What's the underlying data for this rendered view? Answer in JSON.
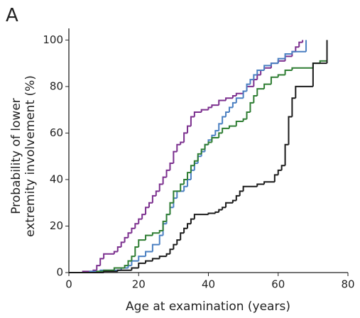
{
  "chart_data": {
    "type": "step",
    "panel_label": "A",
    "xlabel": "Age at examination (years)",
    "ylabel": [
      "Probability of lower",
      "extremity involvement (%)"
    ],
    "xlim": [
      0,
      80
    ],
    "ylim": [
      0,
      105
    ],
    "xticks": [
      0,
      20,
      40,
      60,
      80
    ],
    "yticks": [
      0,
      20,
      40,
      60,
      80,
      100
    ],
    "series": [
      {
        "color": "#7b2f8e",
        "x": [
          0,
          4,
          7,
          8,
          9,
          10,
          13,
          14,
          15,
          16,
          17,
          18,
          19,
          20,
          21,
          22,
          23,
          24,
          25,
          26,
          27,
          28,
          29,
          30,
          31,
          32,
          33,
          34,
          35,
          36,
          38,
          40,
          41,
          43,
          45,
          47,
          48,
          50,
          51,
          53,
          54,
          55,
          56,
          58,
          60,
          62,
          64,
          65,
          66,
          67
        ],
        "values": [
          0,
          0.5,
          1,
          3,
          6,
          8,
          9,
          11,
          13,
          15,
          17,
          19,
          21,
          23,
          25,
          28,
          30,
          33,
          35,
          38,
          41,
          44,
          47,
          52,
          55,
          56,
          60,
          63,
          67,
          69,
          70,
          71,
          72,
          74,
          75,
          76,
          77,
          78,
          80,
          83,
          85,
          87,
          88,
          90,
          91,
          93,
          95,
          97,
          99,
          100
        ]
      },
      {
        "color": "#4a7fc1",
        "x": [
          0,
          6,
          9,
          15,
          17,
          18,
          20,
          22,
          24,
          26,
          27,
          28,
          29,
          30,
          31,
          33,
          34,
          35,
          36,
          37,
          38,
          39,
          40,
          41,
          42,
          43,
          44,
          45,
          46,
          47,
          48,
          50,
          51,
          52,
          53,
          54,
          56,
          58,
          60,
          62,
          64,
          68
        ],
        "values": [
          0,
          0.5,
          1,
          2,
          3,
          5,
          7,
          9,
          12,
          16,
          21,
          25,
          28,
          32,
          35,
          37,
          40,
          44,
          47,
          50,
          52,
          55,
          57,
          59,
          61,
          64,
          67,
          69,
          71,
          73,
          75,
          78,
          81,
          83,
          85,
          87,
          89,
          90,
          92,
          94,
          95,
          100
        ]
      },
      {
        "color": "#2e7d32",
        "x": [
          0,
          8,
          10,
          13,
          16,
          17,
          18,
          19,
          20,
          22,
          24,
          26,
          27,
          28,
          29,
          30,
          32,
          33,
          34,
          35,
          36,
          37,
          38,
          39,
          40,
          41,
          43,
          44,
          46,
          48,
          50,
          51,
          52,
          53,
          54,
          56,
          58,
          60,
          62,
          64,
          70,
          72,
          74
        ],
        "values": [
          0,
          0.5,
          1,
          2,
          3,
          5,
          7,
          11,
          14,
          16,
          17,
          18,
          22,
          25,
          30,
          35,
          38,
          40,
          43,
          46,
          48,
          51,
          53,
          55,
          56,
          58,
          60,
          62,
          63,
          65,
          66,
          69,
          73,
          76,
          79,
          81,
          84,
          85,
          87,
          88,
          90,
          91,
          91
        ]
      },
      {
        "color": "#1a1a1a",
        "x": [
          0,
          10,
          14,
          18,
          20,
          22,
          24,
          26,
          28,
          29,
          30,
          31,
          32,
          33,
          34,
          35,
          36,
          40,
          42,
          43,
          44,
          45,
          47,
          48,
          49,
          50,
          54,
          56,
          59,
          60,
          61,
          62,
          63,
          64,
          65,
          70,
          74
        ],
        "values": [
          0,
          0.5,
          1,
          2,
          4,
          5,
          6,
          7,
          8,
          10,
          12,
          14,
          17,
          19,
          21,
          23,
          25,
          25.5,
          26,
          27,
          28,
          30,
          31,
          33,
          35,
          37,
          38,
          39,
          42,
          44,
          46,
          55,
          67,
          75,
          80,
          90,
          100
        ]
      }
    ]
  }
}
